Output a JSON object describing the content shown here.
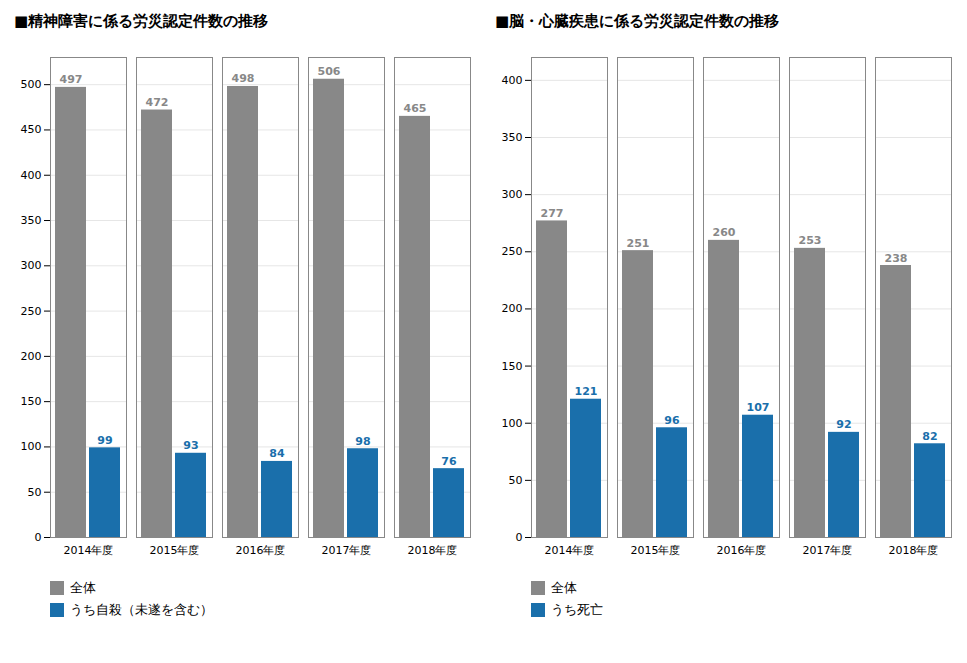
{
  "chart_data": [
    {
      "type": "bar",
      "title": "■精神障害に係る労災認定件数の推移",
      "categories": [
        "2014年度",
        "2015年度",
        "2016年度",
        "2017年度",
        "2018年度"
      ],
      "series": [
        {
          "name": "全体",
          "color": "#888888",
          "values": [
            497,
            472,
            498,
            506,
            465
          ]
        },
        {
          "name": "うち自殺（未遂を含む）",
          "color": "#1a6fab",
          "values": [
            99,
            93,
            84,
            98,
            76
          ]
        }
      ],
      "ylim": [
        0,
        530
      ],
      "yticks": [
        0,
        50,
        100,
        150,
        200,
        250,
        300,
        350,
        400,
        450,
        500
      ],
      "grid": true,
      "data_labels": true,
      "legend": "bottom"
    },
    {
      "type": "bar",
      "title": "■脳・心臓疾患に係る労災認定件数の推移",
      "categories": [
        "2014年度",
        "2015年度",
        "2016年度",
        "2017年度",
        "2018年度"
      ],
      "series": [
        {
          "name": "全体",
          "color": "#888888",
          "values": [
            277,
            251,
            260,
            253,
            238
          ]
        },
        {
          "name": "うち死亡",
          "color": "#1a6fab",
          "values": [
            121,
            96,
            107,
            92,
            82
          ]
        }
      ],
      "ylim": [
        0,
        420
      ],
      "yticks": [
        0,
        50,
        100,
        150,
        200,
        250,
        300,
        350,
        400
      ],
      "grid": true,
      "data_labels": true,
      "legend": "bottom"
    }
  ]
}
